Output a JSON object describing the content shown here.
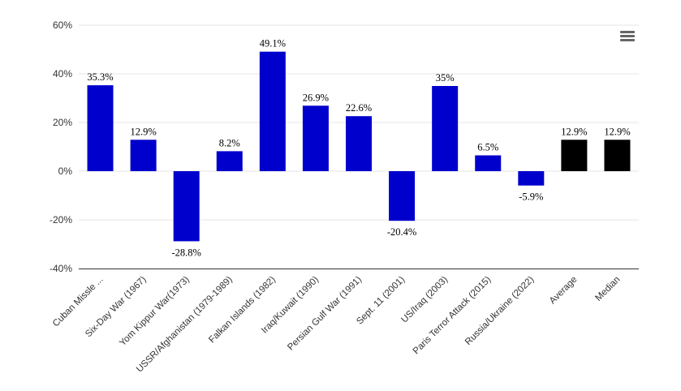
{
  "menu": {
    "icon": "hamburger-menu-icon"
  },
  "colors": {
    "bar": "#0000cc",
    "summary_bar": "#000000",
    "grid": "#e6e6e6",
    "axis": "#333333"
  },
  "chart_data": {
    "type": "bar",
    "categories": [
      "Cuban Missle ...",
      "Six-Day War (1967)",
      "Yom Kippur War(1973)",
      "USSR/Afghanistan (1979-1989)",
      "Falkan Islands (1982)",
      "Iraq/Kuwait (1990)",
      "Persian Gulf War (1991)",
      "Sept. 11 (2001)",
      "US/Iraq (2003)",
      "Paris Terror Attack (2015)",
      "Russia/Ukraine (2022)",
      "Average",
      "Median"
    ],
    "values": [
      35.3,
      12.9,
      -28.8,
      8.2,
      49.1,
      26.9,
      22.6,
      -20.4,
      35,
      6.5,
      -5.9,
      12.9,
      12.9
    ],
    "data_labels": [
      "35.3%",
      "12.9%",
      "-28.8%",
      "8.2%",
      "49.1%",
      "26.9%",
      "22.6%",
      "-20.4%",
      "35%",
      "6.5%",
      "-5.9%",
      "12.9%",
      "12.9%"
    ],
    "summary_categories": [
      "Average",
      "Median"
    ],
    "y_ticks": [
      60,
      40,
      20,
      0,
      -20,
      -40
    ],
    "y_tick_labels": [
      "60%",
      "40%",
      "20%",
      "0%",
      "-20%",
      "-40%"
    ],
    "ylim": [
      -40,
      60
    ],
    "title": "",
    "xlabel": "",
    "ylabel": "",
    "grid": true,
    "legend": false
  }
}
